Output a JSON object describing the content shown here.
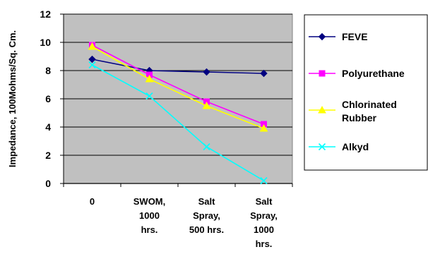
{
  "chart_data": {
    "type": "line",
    "ylabel": "Impedance, 100Mohms/Sq. Cm.",
    "ylim": [
      0,
      12
    ],
    "yticks": [
      0,
      2,
      4,
      6,
      8,
      10,
      12
    ],
    "categories": [
      [
        "0"
      ],
      [
        "SWOM,",
        "1000",
        "hrs."
      ],
      [
        "Salt",
        "Spray,",
        "500 hrs."
      ],
      [
        "Salt",
        "Spray,",
        "1000",
        "hrs."
      ]
    ],
    "grid": true,
    "legend_position": "right",
    "plot_background": "#c0c0c0",
    "series": [
      {
        "name": "FEVE",
        "legend_lines": [
          "FEVE"
        ],
        "color": "#000080",
        "marker": "diamond",
        "values": [
          8.8,
          8.0,
          7.9,
          7.8
        ]
      },
      {
        "name": "Polyurethane",
        "legend_lines": [
          "Polyurethane"
        ],
        "color": "#ff00ff",
        "marker": "square",
        "values": [
          9.8,
          7.7,
          5.8,
          4.2
        ]
      },
      {
        "name": "Chlorinated Rubber",
        "legend_lines": [
          "Chlorinated",
          "Rubber"
        ],
        "color": "#ffff00",
        "marker": "triangle",
        "values": [
          9.7,
          7.4,
          5.5,
          3.9
        ]
      },
      {
        "name": "Alkyd",
        "legend_lines": [
          "Alkyd"
        ],
        "color": "#00ffff",
        "marker": "x",
        "values": [
          8.4,
          6.2,
          2.6,
          0.2
        ]
      }
    ]
  }
}
